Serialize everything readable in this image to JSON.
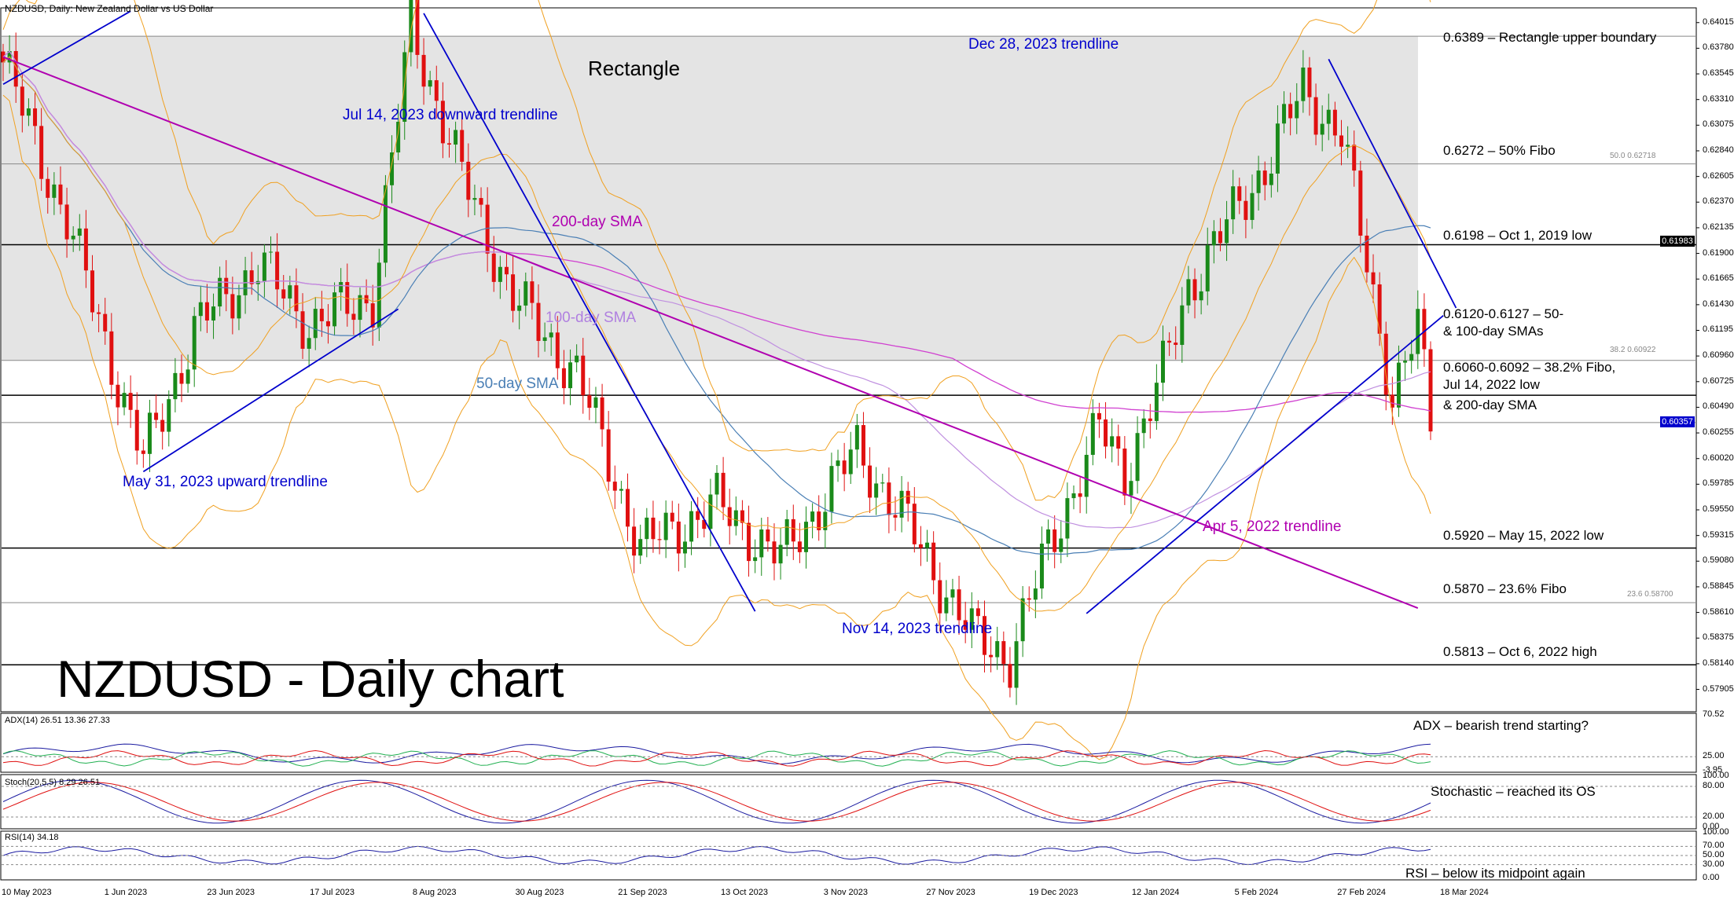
{
  "chart_data": {
    "type": "candlestick",
    "title": "NZDUSD - Daily chart",
    "header": "NZDUSD, Daily:  New Zealand Dollar vs US Dollar",
    "ylim": [
      0.577,
      0.6415
    ],
    "y_ticks": [
      "0.64015",
      "0.63780",
      "0.63545",
      "0.63310",
      "0.63075",
      "0.62840",
      "0.62605",
      "0.62370",
      "0.62135",
      "0.61900",
      "0.61665",
      "0.61430",
      "0.61195",
      "0.60960",
      "0.60725",
      "0.60490",
      "0.60255",
      "0.60020",
      "0.59785",
      "0.59550",
      "0.59315",
      "0.59080",
      "0.58845",
      "0.58610",
      "0.58375",
      "0.58140",
      "0.57905"
    ],
    "x_ticks": [
      "10 May 2023",
      "1 Jun 2023",
      "23 Jun 2023",
      "17 Jul 2023",
      "8 Aug 2023",
      "30 Aug 2023",
      "21 Sep 2023",
      "13 Oct 2023",
      "3 Nov 2023",
      "27 Nov 2023",
      "19 Dec 2023",
      "12 Jan 2024",
      "5 Feb 2024",
      "27 Feb 2024",
      "18 Mar 2024"
    ],
    "current_price": "0.60357",
    "current_price_color": "#0000cc",
    "tag_0_61983": "0.61983",
    "series": [
      {
        "name": "50-day SMA",
        "color": "#4a7fb5"
      },
      {
        "name": "100-day SMA",
        "color": "#c090e0"
      },
      {
        "name": "200-day SMA",
        "color": "#d040d0"
      },
      {
        "name": "Bollinger Bands",
        "color": "#f0a020"
      }
    ],
    "rectangle": {
      "label": "Rectangle",
      "top": 0.6389,
      "bottom": 0.6092
    },
    "horizontal_levels": [
      {
        "price": 0.6389,
        "label": "0.6389 – Rectangle upper boundary"
      },
      {
        "price": 0.6272,
        "label": "0.6272 – 50% Fibo",
        "fibo_tag": "50.0 0.62718"
      },
      {
        "price": 0.6198,
        "label": "0.6198 – Oct 1, 2019 low"
      },
      {
        "price": 0.606,
        "label": "0.6060-0.6092 – 38.2% Fibo,",
        "fibo_tag": "38.2 0.60922"
      },
      {
        "price": 0.592,
        "label": "0.5920 – May 15, 2022 low"
      },
      {
        "price": 0.587,
        "label": "0.5870 – 23.6% Fibo",
        "fibo_tag": "23.6 0.58700"
      },
      {
        "price": 0.5813,
        "label": "0.5813 – Oct 6, 2022 high"
      }
    ],
    "level_extra_labels": {
      "sma_line1": "0.6120-0.6127 – 50-",
      "sma_line2": "& 100-day SMAs",
      "fibo_line2": "Jul 14, 2022 low",
      "fibo_line3": "& 200-day SMA"
    },
    "trendline_labels": {
      "jul14": "Jul 14, 2023 downward trendline",
      "may31": "May 31, 2023 upward trendline",
      "dec28": "Dec 28, 2023 trendline",
      "nov14": "Nov 14, 2023 trendline",
      "apr5": "Apr 5, 2022 trendline"
    },
    "sma_labels": {
      "sma200": "200-day SMA",
      "sma100": "100-day SMA",
      "sma50": "50-day SMA"
    },
    "indicators": {
      "adx": {
        "header": "ADX(14) 26.51 13.36 27.33",
        "note": "ADX – bearish trend starting?",
        "ticks": [
          "70.52",
          "25.00",
          "-3.95"
        ],
        "adx": 26.51,
        "plus_di": 13.36,
        "minus_di": 27.33
      },
      "stoch": {
        "header": "Stoch(20,5,5) 8.29 26.51",
        "note": "Stochastic – reached its OS",
        "ticks": [
          "100.00",
          "80.00",
          "20.00",
          "0.00"
        ],
        "k": 8.29,
        "d": 26.51
      },
      "rsi": {
        "header": "RSI(14) 34.18",
        "note": "RSI – below its midpoint again",
        "ticks": [
          "100.00",
          "70.00",
          "50.00",
          "30.00",
          "0.00"
        ],
        "value": 34.18
      }
    }
  }
}
